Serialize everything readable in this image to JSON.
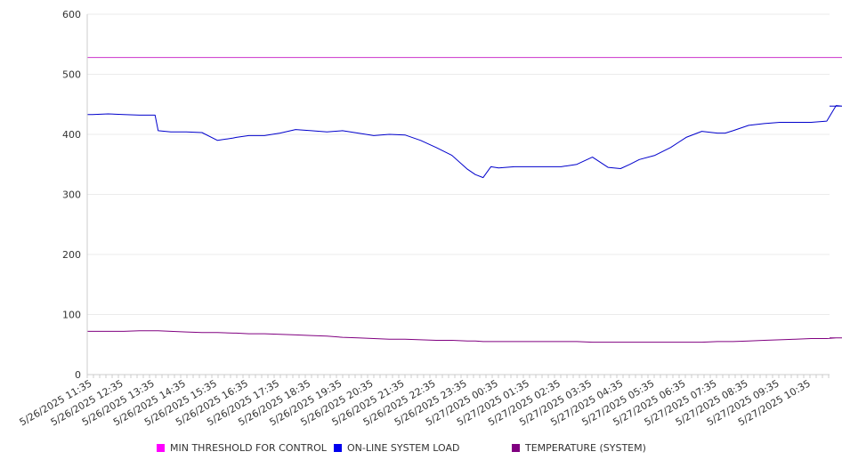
{
  "chart_data": {
    "type": "line",
    "title": "",
    "xlabel": "",
    "ylabel": "",
    "ylim": [
      0,
      600
    ],
    "yticks": [
      0,
      100,
      200,
      300,
      400,
      500,
      600
    ],
    "grid": true,
    "legend_position": "bottom",
    "x_tick_labels": [
      "5/26/2025 11:35",
      "5/26/2025 12:35",
      "5/26/2025 13:35",
      "5/26/2025 14:35",
      "5/26/2025 15:35",
      "5/26/2025 16:35",
      "5/26/2025 17:35",
      "5/26/2025 18:35",
      "5/26/2025 19:35",
      "5/26/2025 20:35",
      "5/26/2025 21:35",
      "5/26/2025 22:35",
      "5/26/2025 23:35",
      "5/27/2025 00:35",
      "5/27/2025 01:35",
      "5/27/2025 02:35",
      "5/27/2025 03:35",
      "5/27/2025 04:35",
      "5/27/2025 05:35",
      "5/27/2025 06:35",
      "5/27/2025 07:35",
      "5/27/2025 08:35",
      "5/27/2025 09:35",
      "5/27/2025 10:35"
    ],
    "x_hours": [
      0,
      0.5,
      1,
      1.5,
      2,
      2.1,
      2.5,
      3,
      3.5,
      4,
      4.5,
      4.6,
      5,
      5.5,
      6,
      6.5,
      7,
      7.5,
      8,
      8.5,
      9,
      9.5,
      10,
      10.5,
      11,
      11.5,
      12,
      12.25,
      12.5,
      12.75,
      13,
      13.5,
      14,
      14.5,
      15,
      15.5,
      16,
      16.5,
      16.9,
      17.2,
      17.5,
      18,
      18.5,
      19,
      19.5,
      20,
      20.25,
      20.5,
      21,
      21.5,
      22,
      22.5,
      23,
      23.5,
      23.8,
      24
    ],
    "series": [
      {
        "name": "MIN THRESHOLD FOR CONTROL",
        "color": "#cc33cc",
        "values": [
          528,
          528,
          528,
          528,
          528,
          528,
          528,
          528,
          528,
          528,
          528,
          528,
          528,
          528,
          528,
          528,
          528,
          528,
          528,
          528,
          528,
          528,
          528,
          528,
          528,
          528,
          528,
          528,
          528,
          528,
          528,
          528,
          528,
          528,
          528,
          528,
          528,
          528,
          528,
          528,
          528,
          528,
          528,
          528,
          528,
          528,
          528,
          528,
          528,
          528,
          528,
          528,
          528,
          528,
          528,
          528
        ]
      },
      {
        "name": "ON-LINE SYSTEM LOAD",
        "color": "#0000cc",
        "values": [
          433,
          434,
          433,
          432,
          432,
          406,
          404,
          404,
          403,
          390,
          394,
          395,
          398,
          398,
          402,
          408,
          406,
          404,
          406,
          402,
          398,
          400,
          399,
          390,
          378,
          365,
          342,
          333,
          328,
          346,
          344,
          346,
          346,
          346,
          346,
          350,
          362,
          345,
          343,
          350,
          358,
          365,
          378,
          395,
          405,
          402,
          402,
          406,
          415,
          418,
          420,
          420,
          420,
          422,
          448,
          447
        ]
      },
      {
        "name": "TEMPERATURE (SYSTEM)",
        "color": "#800080",
        "values": [
          72,
          72,
          72,
          73,
          73,
          73,
          72,
          71,
          70,
          70,
          69,
          69,
          68,
          68,
          67,
          66,
          65,
          64,
          62,
          61,
          60,
          59,
          59,
          58,
          57,
          57,
          56,
          56,
          55,
          55,
          55,
          55,
          55,
          55,
          55,
          55,
          54,
          54,
          54,
          54,
          54,
          54,
          54,
          54,
          54,
          55,
          55,
          55,
          56,
          57,
          58,
          59,
          60,
          60,
          61,
          61
        ]
      }
    ]
  }
}
